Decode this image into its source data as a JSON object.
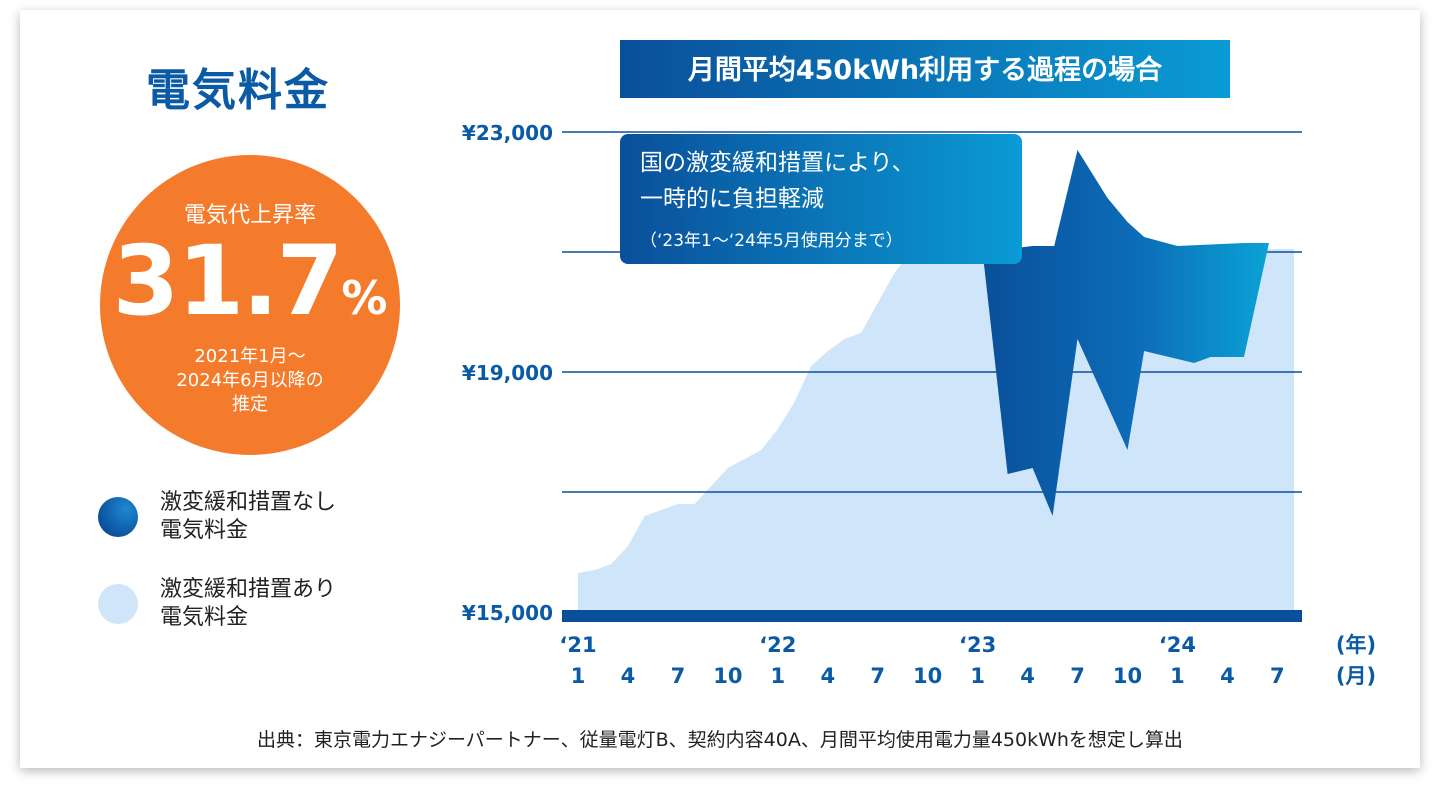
{
  "title": "電気料金",
  "badge": {
    "label": "電気代上昇率",
    "value": "31.7",
    "unit": "%",
    "period": "2021年1月～\n2024年6月以降の\n推定"
  },
  "legend": [
    {
      "text": "激変緩和措置なし\n電気料金",
      "color": "#0a4f9a"
    },
    {
      "text": "激変緩和措置あり\n電気料金",
      "color": "#cfe6fa"
    }
  ],
  "source": "出典：東京電力エナジーパートナー、従量電灯B、契約内容40A、月間平均使用電力量450kWhを想定し算出",
  "chart_data": {
    "type": "area",
    "title": "月間平均450kWh利用する過程の場合",
    "annotation": {
      "line1": "国の激変緩和措置により、",
      "line2": "一時的に負担軽減",
      "line3": "（‘23年1～‘24年5月使用分まで）"
    },
    "ylim": [
      15000,
      23000
    ],
    "y_ticks": [
      15000,
      17000,
      19000,
      21000,
      23000
    ],
    "y_tick_labels": [
      "¥15,000",
      "",
      "¥19,000",
      "",
      "¥23,000"
    ],
    "x_month_labels": [
      "1",
      "4",
      "7",
      "10",
      "1",
      "4",
      "7",
      "10",
      "1",
      "4",
      "7",
      "10",
      "1",
      "4",
      "7"
    ],
    "x_year_labels": [
      "‘21",
      "‘22",
      "‘23",
      "‘24"
    ],
    "x_unit_year": "(年)",
    "x_unit_month": "(月)",
    "x_index_range": [
      0,
      43
    ],
    "series": [
      {
        "name": "激変緩和措置あり電気料金",
        "color": "#cfe6fa",
        "points": [
          [
            0,
            15650
          ],
          [
            1,
            15700
          ],
          [
            2,
            15800
          ],
          [
            3,
            16100
          ],
          [
            4,
            16600
          ],
          [
            5,
            16700
          ],
          [
            6,
            16800
          ],
          [
            7,
            16800
          ],
          [
            8,
            17100
          ],
          [
            9,
            17400
          ],
          [
            10,
            17550
          ],
          [
            11,
            17700
          ],
          [
            12,
            18050
          ],
          [
            13,
            18500
          ],
          [
            14,
            19100
          ],
          [
            15,
            19350
          ],
          [
            16,
            19550
          ],
          [
            17,
            19650
          ],
          [
            18,
            20150
          ],
          [
            19,
            20650
          ],
          [
            20,
            21000
          ],
          [
            21,
            21000
          ],
          [
            22,
            21000
          ],
          [
            23,
            21000
          ],
          [
            24,
            21000
          ],
          [
            25,
            21000
          ],
          [
            26,
            21000
          ],
          [
            27,
            21000
          ],
          [
            28,
            21000
          ],
          [
            29,
            21000
          ],
          [
            30,
            21000
          ],
          [
            31,
            21000
          ],
          [
            32,
            21000
          ],
          [
            33,
            21000
          ],
          [
            34,
            21000
          ],
          [
            35,
            21000
          ],
          [
            36,
            21000
          ],
          [
            37,
            21000
          ],
          [
            38,
            21000
          ],
          [
            39,
            21000
          ],
          [
            40,
            21000
          ],
          [
            41,
            21050
          ],
          [
            42,
            21050
          ],
          [
            43,
            21050
          ]
        ]
      },
      {
        "name": "激変緩和措置なし電気料金",
        "color": "#0a4f9a",
        "upper": [
          [
            24.3,
            21000
          ],
          [
            27.3,
            21100
          ],
          [
            28.6,
            21100
          ],
          [
            30,
            22700
          ],
          [
            31.8,
            21900
          ],
          [
            33,
            21500
          ],
          [
            34,
            21250
          ],
          [
            36,
            21100
          ],
          [
            40,
            21150
          ],
          [
            41.5,
            21150
          ]
        ],
        "lower": [
          [
            41.5,
            21150
          ],
          [
            40,
            19250
          ],
          [
            38,
            19250
          ],
          [
            37,
            19150
          ],
          [
            34,
            19350
          ],
          [
            33,
            17700
          ],
          [
            30,
            19550
          ],
          [
            28.5,
            16600
          ],
          [
            27.3,
            17400
          ],
          [
            25.8,
            17300
          ],
          [
            24.3,
            21000
          ]
        ]
      }
    ]
  }
}
